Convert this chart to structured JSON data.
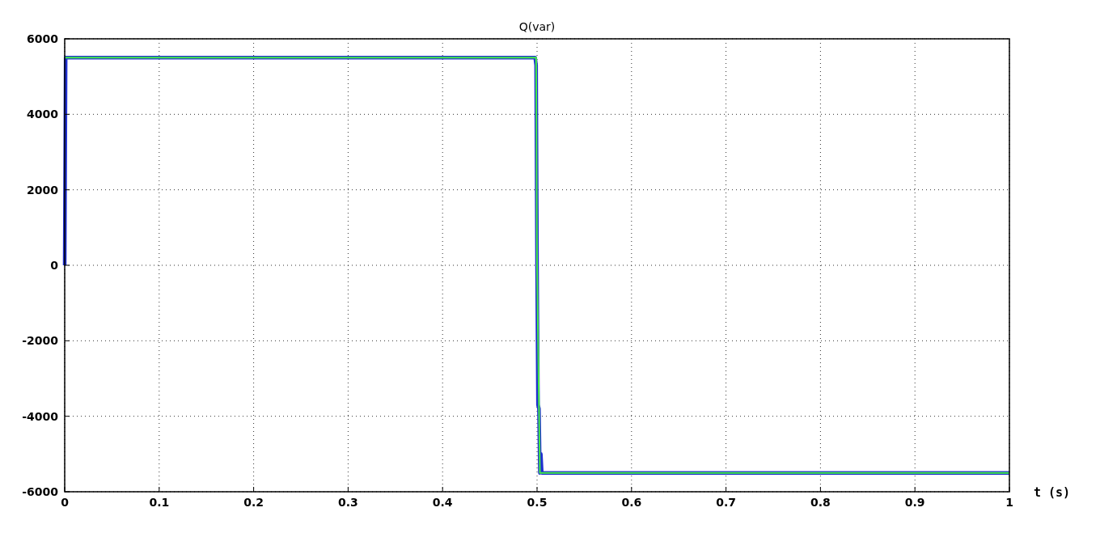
{
  "chart_data": {
    "type": "line",
    "title": "Q(var)",
    "xlabel": "t (s)",
    "xlim": [
      0,
      1
    ],
    "xticks": [
      0,
      0.1,
      0.2,
      0.3,
      0.4,
      0.5,
      0.6,
      0.7,
      0.8,
      0.9,
      1
    ],
    "ylim": [
      -6000,
      6000
    ],
    "yticks": [
      -6000,
      -4000,
      -2000,
      0,
      2000,
      4000,
      6000
    ],
    "grid": true,
    "series": [
      {
        "color": "#1f2fd0",
        "x": [
          0,
          0.001,
          0.498,
          0.499,
          0.5,
          0.501,
          0.502,
          0.503,
          0.504,
          0.505,
          0.506,
          1
        ],
        "values": [
          0,
          5500,
          5500,
          5300,
          0,
          -3700,
          -3800,
          -5500,
          -5000,
          -5500,
          -5500,
          -5500
        ]
      },
      {
        "color": "#44ee44",
        "x": [
          0,
          0.499,
          0.5,
          0.503,
          1
        ],
        "values": [
          5500,
          5500,
          0,
          -5500,
          -5500
        ]
      }
    ]
  }
}
